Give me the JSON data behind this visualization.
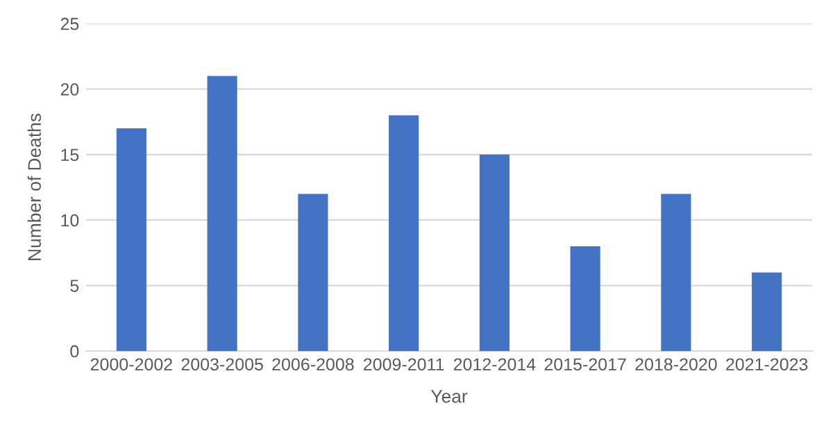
{
  "chart_data": {
    "type": "bar",
    "xlabel": "Year",
    "ylabel": "Number of Deaths",
    "categories": [
      "2000-2002",
      "2003-2005",
      "2006-2008",
      "2009-2011",
      "2012-2014",
      "2015-2017",
      "2018-2020",
      "2021-2023"
    ],
    "values": [
      17,
      21,
      12,
      18,
      15,
      8,
      12,
      6
    ],
    "color": "#4472c4",
    "ylim": [
      0,
      25
    ],
    "yticks": [
      0,
      5,
      10,
      15,
      20,
      25
    ],
    "grid": "y"
  }
}
